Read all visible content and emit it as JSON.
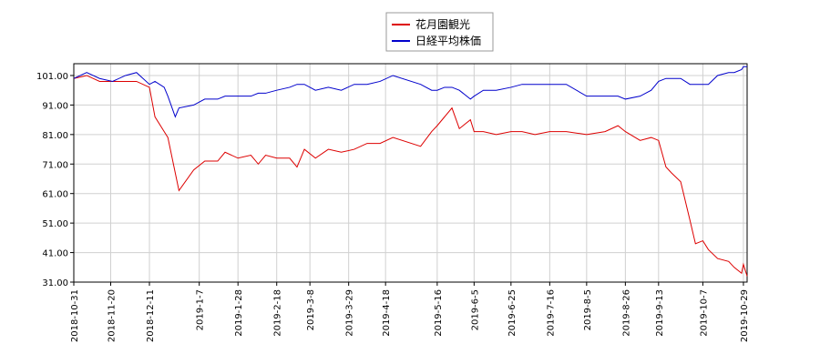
{
  "chart_data": {
    "type": "line",
    "x": [
      "2018-10-31",
      "2018-11-07",
      "2018-11-14",
      "2018-11-21",
      "2018-11-28",
      "2018-12-04",
      "2018-12-11",
      "2018-12-14",
      "2018-12-19",
      "2018-12-21",
      "2018-12-25",
      "2018-12-27",
      "2019-01-04",
      "2019-01-10",
      "2019-01-17",
      "2019-01-21",
      "2019-01-28",
      "2019-02-04",
      "2019-02-08",
      "2019-02-12",
      "2019-02-18",
      "2019-02-25",
      "2019-03-01",
      "2019-03-05",
      "2019-03-11",
      "2019-03-18",
      "2019-03-25",
      "2019-04-01",
      "2019-04-08",
      "2019-04-15",
      "2019-04-22",
      "2019-05-07",
      "2019-05-13",
      "2019-05-16",
      "2019-05-20",
      "2019-05-24",
      "2019-05-28",
      "2019-06-03",
      "2019-06-05",
      "2019-06-10",
      "2019-06-17",
      "2019-06-25",
      "2019-07-01",
      "2019-07-08",
      "2019-07-16",
      "2019-07-25",
      "2019-08-05",
      "2019-08-15",
      "2019-08-22",
      "2019-08-26",
      "2019-09-03",
      "2019-09-09",
      "2019-09-13",
      "2019-09-17",
      "2019-09-20",
      "2019-09-25",
      "2019-09-30",
      "2019-10-03",
      "2019-10-07",
      "2019-10-10",
      "2019-10-15",
      "2019-10-21",
      "2019-10-24",
      "2019-10-28",
      "2019-10-29",
      "2019-10-31"
    ],
    "series": [
      {
        "name": "花月園観光",
        "color": "#dd0000",
        "values": [
          100,
          101,
          99,
          99,
          99,
          99,
          97,
          87,
          82,
          80,
          68,
          62,
          69,
          72,
          72,
          75,
          73,
          74,
          71,
          74,
          73,
          73,
          70,
          76,
          73,
          76,
          75,
          76,
          78,
          78,
          80,
          77,
          82,
          84,
          87,
          90,
          83,
          86,
          82,
          82,
          81,
          82,
          82,
          81,
          82,
          82,
          81,
          82,
          84,
          82,
          79,
          80,
          79,
          70,
          68,
          65,
          52,
          44,
          45,
          42,
          39,
          38,
          36,
          34,
          37,
          33
        ]
      },
      {
        "name": "日経平均株価",
        "color": "#0000cc",
        "values": [
          100,
          102,
          100,
          99,
          101,
          102,
          98,
          99,
          97,
          94,
          87,
          90,
          91,
          93,
          93,
          94,
          94,
          94,
          95,
          95,
          96,
          97,
          98,
          98,
          96,
          97,
          96,
          98,
          98,
          99,
          101,
          98,
          96,
          96,
          97,
          97,
          96,
          93,
          94,
          96,
          96,
          97,
          98,
          98,
          98,
          98,
          94,
          94,
          94,
          93,
          94,
          96,
          99,
          100,
          100,
          100,
          98,
          98,
          98,
          98,
          101,
          102,
          102,
          103,
          104,
          104
        ]
      }
    ],
    "xlim": [
      "2018-10-31",
      "2019-10-31"
    ],
    "xticks": [
      "2018-10-31",
      "2018-11-20",
      "2018-12-11",
      "2019-1-7",
      "2019-1-28",
      "2019-2-18",
      "2019-3-8",
      "2019-3-29",
      "2019-4-18",
      "2019-5-16",
      "2019-6-5",
      "2019-6-25",
      "2019-7-16",
      "2019-8-5",
      "2019-8-26",
      "2019-9-13",
      "2019-10-7",
      "2019-10-29"
    ],
    "ylim": [
      31,
      105
    ],
    "yticks": [
      {
        "value": 31,
        "label": "31.00"
      },
      {
        "value": 41,
        "label": "41.00"
      },
      {
        "value": 51,
        "label": "51.00"
      },
      {
        "value": 61,
        "label": "61.00"
      },
      {
        "value": 71,
        "label": "71.00"
      },
      {
        "value": 81,
        "label": "81.00"
      },
      {
        "value": 91,
        "label": "91.00"
      },
      {
        "value": 101,
        "label": "101.00"
      }
    ],
    "grid": true
  }
}
